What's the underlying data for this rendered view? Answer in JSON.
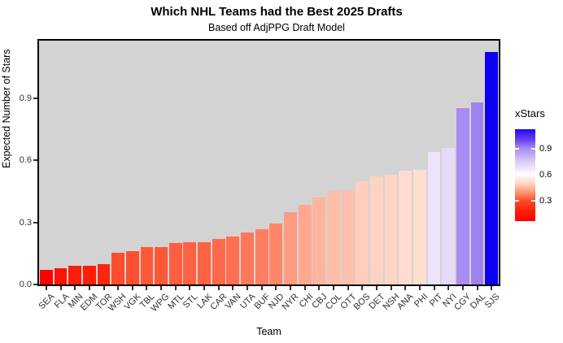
{
  "header": {
    "title": "Which NHL Teams had the Best 2025 Drafts",
    "subtitle": "Based off AdjPPG Draft Model"
  },
  "chart_data": {
    "type": "bar",
    "title": "Which NHL Teams had the Best 2025 Drafts",
    "subtitle": "Based off AdjPPG Draft Model",
    "xlabel": "Team",
    "ylabel": "Expected Number of Stars",
    "grid": "off",
    "panel_bg": "#D3D3D3",
    "ylim": [
      0,
      1.18
    ],
    "y_ticks": [
      {
        "label": "0.0",
        "value": 0.0
      },
      {
        "label": "0.3",
        "value": 0.3
      },
      {
        "label": "0.6",
        "value": 0.6
      },
      {
        "label": "0.9",
        "value": 0.9
      }
    ],
    "categories": [
      "SEA",
      "FLA",
      "MIN",
      "EDM",
      "TOR",
      "WSH",
      "VGK",
      "TBL",
      "WPG",
      "MTL",
      "STL",
      "LAK",
      "CAR",
      "VAN",
      "UTA",
      "BUF",
      "NJD",
      "NYR",
      "CHI",
      "CBJ",
      "COL",
      "OTT",
      "BOS",
      "DET",
      "NSH",
      "ANA",
      "PHI",
      "PIT",
      "NYI",
      "CGY",
      "DAL",
      "SJS"
    ],
    "values": [
      0.07,
      0.08,
      0.09,
      0.09,
      0.1,
      0.155,
      0.16,
      0.18,
      0.18,
      0.2,
      0.205,
      0.205,
      0.22,
      0.23,
      0.25,
      0.265,
      0.295,
      0.35,
      0.385,
      0.42,
      0.45,
      0.455,
      0.5,
      0.52,
      0.53,
      0.55,
      0.555,
      0.64,
      0.66,
      0.85,
      0.88,
      1.12
    ],
    "bar_colors": [
      "#FF0000",
      "#FF1203",
      "#FF1D09",
      "#FF1D09",
      "#FF260F",
      "#FF4C2D",
      "#FF4F30",
      "#FF5838",
      "#FF5838",
      "#FF5F40",
      "#FF6243",
      "#FF6243",
      "#FF6A4B",
      "#FF6F50",
      "#FF785A",
      "#FF7E61",
      "#FF8768",
      "#FF9B80",
      "#FFA88F",
      "#FFB59E",
      "#FFBEA9",
      "#FFC0AC",
      "#FFCEBD",
      "#FFD3C3",
      "#FFD5C6",
      "#FFDCCF",
      "#FFDED1",
      "#ECE3FA",
      "#E5DBF8",
      "#A98CF2",
      "#A081F0",
      "#0D00F2"
    ],
    "legend": {
      "title": "xStars",
      "position": "right",
      "range_min": 0.07,
      "range_max": 1.12,
      "entries": [
        {
          "label": "0.9",
          "value": 0.9
        },
        {
          "label": "0.6",
          "value": 0.6
        },
        {
          "label": "0.3",
          "value": 0.3
        }
      ],
      "colors": {
        "low": "#FF0000",
        "mid": "#FFFFFF",
        "high": "#1C08F7"
      },
      "gradient_stops": [
        [
          0,
          "#FF0000"
        ],
        [
          10,
          "#FF1A06"
        ],
        [
          21.9,
          "#FF4726"
        ],
        [
          30,
          "#FF8A68"
        ],
        [
          40,
          "#FFD0BF"
        ],
        [
          50.5,
          "#FFFFFF"
        ],
        [
          65,
          "#D9CBF7"
        ],
        [
          79,
          "#A88BF2"
        ],
        [
          88,
          "#6C47F0"
        ],
        [
          100,
          "#1C08F7"
        ]
      ]
    }
  }
}
